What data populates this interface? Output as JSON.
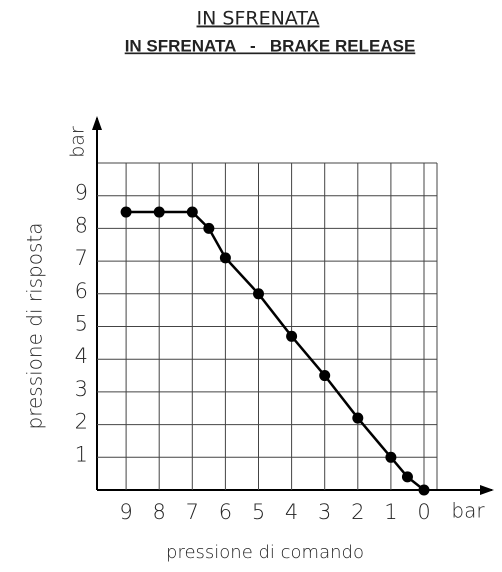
{
  "chart_data": {
    "type": "line",
    "title": "IN SFRENATA",
    "subtitle": "IN SFRENATA   -   BRAKE RELEASE",
    "x_label": "pressione di comando",
    "y_label": "pressione di risposta",
    "x_unit": "bar",
    "y_unit": "bar",
    "x": [
      9,
      8,
      7,
      6.5,
      6,
      5,
      4,
      3,
      2,
      1,
      0.5,
      0
    ],
    "series": [
      {
        "color": "#000000",
        "values": [
          8.5,
          8.5,
          8.5,
          8.0,
          7.1,
          6.0,
          4.7,
          3.5,
          2.2,
          1.0,
          0.4,
          0
        ]
      }
    ],
    "xlim": [
      10,
      0
    ],
    "ylim": [
      0,
      10
    ],
    "xticks": [
      9,
      8,
      7,
      6,
      5,
      4,
      3,
      2,
      1,
      0
    ],
    "yticks": [
      1,
      2,
      3,
      4,
      5,
      6,
      7,
      8,
      9
    ],
    "grid": true
  }
}
